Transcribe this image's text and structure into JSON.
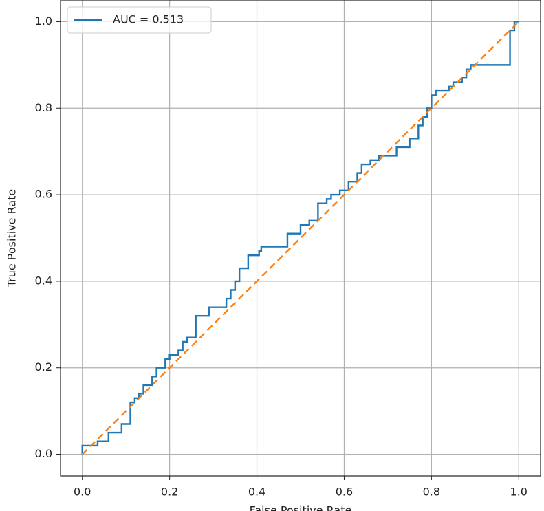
{
  "chart_data": {
    "type": "line",
    "xlabel": "False Positive Rate",
    "ylabel": "True Positive Rate",
    "xlim": [
      -0.05,
      1.05
    ],
    "ylim": [
      -0.05,
      1.05
    ],
    "xticks": [
      {
        "value": 0,
        "label": "0.0"
      },
      {
        "value": 0.2,
        "label": "0.2"
      },
      {
        "value": 0.4,
        "label": "0.4"
      },
      {
        "value": 0.6,
        "label": "0.6"
      },
      {
        "value": 0.8,
        "label": "0.8"
      },
      {
        "value": 1,
        "label": "1.0"
      }
    ],
    "yticks": [
      {
        "value": 0,
        "label": "0.0"
      },
      {
        "value": 0.2,
        "label": "0.2"
      },
      {
        "value": 0.4,
        "label": "0.4"
      },
      {
        "value": 0.6,
        "label": "0.6"
      },
      {
        "value": 0.8,
        "label": "0.8"
      },
      {
        "value": 1,
        "label": "1.0"
      }
    ],
    "grid": true,
    "legend": "upper left",
    "series": [
      {
        "name": "AUC = 0.513",
        "color": "#1f77b4",
        "linestyle": "solid",
        "x": [
          0,
          0,
          0.035,
          0.035,
          0.06,
          0.06,
          0.09,
          0.09,
          0.11,
          0.11,
          0.12,
          0.12,
          0.13,
          0.13,
          0.14,
          0.14,
          0.16,
          0.16,
          0.17,
          0.17,
          0.19,
          0.19,
          0.2,
          0.2,
          0.22,
          0.22,
          0.23,
          0.23,
          0.24,
          0.24,
          0.26,
          0.26,
          0.29,
          0.29,
          0.33,
          0.33,
          0.34,
          0.34,
          0.35,
          0.35,
          0.36,
          0.36,
          0.38,
          0.38,
          0.405,
          0.405,
          0.41,
          0.41,
          0.47,
          0.47,
          0.5,
          0.5,
          0.52,
          0.52,
          0.54,
          0.54,
          0.56,
          0.56,
          0.57,
          0.57,
          0.59,
          0.59,
          0.61,
          0.61,
          0.63,
          0.63,
          0.64,
          0.64,
          0.66,
          0.66,
          0.68,
          0.68,
          0.72,
          0.72,
          0.75,
          0.75,
          0.77,
          0.77,
          0.78,
          0.78,
          0.79,
          0.79,
          0.8,
          0.8,
          0.81,
          0.81,
          0.84,
          0.84,
          0.85,
          0.85,
          0.87,
          0.87,
          0.88,
          0.88,
          0.89,
          0.89,
          0.98,
          0.98,
          0.99,
          0.99,
          1
        ],
        "values": [
          0,
          0.02,
          0.02,
          0.03,
          0.03,
          0.05,
          0.05,
          0.07,
          0.07,
          0.12,
          0.12,
          0.13,
          0.13,
          0.14,
          0.14,
          0.16,
          0.16,
          0.18,
          0.18,
          0.2,
          0.2,
          0.22,
          0.22,
          0.23,
          0.23,
          0.24,
          0.24,
          0.26,
          0.26,
          0.27,
          0.27,
          0.32,
          0.32,
          0.34,
          0.34,
          0.36,
          0.36,
          0.38,
          0.38,
          0.4,
          0.4,
          0.43,
          0.43,
          0.46,
          0.46,
          0.47,
          0.47,
          0.48,
          0.48,
          0.51,
          0.51,
          0.53,
          0.53,
          0.54,
          0.54,
          0.58,
          0.58,
          0.59,
          0.59,
          0.6,
          0.6,
          0.61,
          0.61,
          0.63,
          0.63,
          0.65,
          0.65,
          0.67,
          0.67,
          0.68,
          0.68,
          0.69,
          0.69,
          0.71,
          0.71,
          0.73,
          0.73,
          0.76,
          0.76,
          0.78,
          0.78,
          0.8,
          0.8,
          0.83,
          0.83,
          0.84,
          0.84,
          0.85,
          0.85,
          0.86,
          0.86,
          0.87,
          0.87,
          0.89,
          0.89,
          0.9,
          0.9,
          0.98,
          0.98,
          1,
          1
        ]
      },
      {
        "color": "#ff7f0e",
        "linestyle": "dashed",
        "x": [
          0,
          1
        ],
        "values": [
          0,
          1
        ]
      }
    ]
  }
}
